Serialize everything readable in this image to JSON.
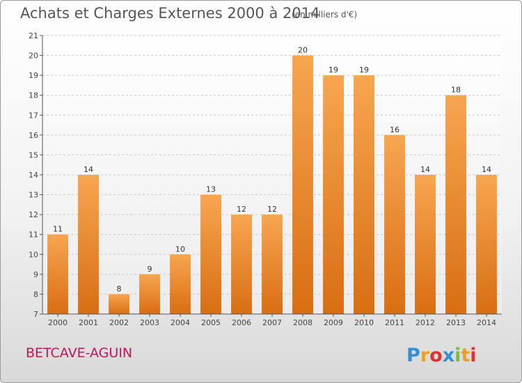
{
  "title": "Achats et Charges Externes 2000 à 2014",
  "subtitle": "(en milliers d'€)",
  "place": "BETCAVE-AGUIN",
  "logo": {
    "text": "Proxiti",
    "letters": [
      {
        "ch": "P",
        "color": "#2f8fd8"
      },
      {
        "ch": "r",
        "color": "#f0a020"
      },
      {
        "ch": "o",
        "color": "#e3302c"
      },
      {
        "ch": "x",
        "color": "#2f8fd8"
      },
      {
        "ch": "i",
        "color": "#7cbf2a"
      },
      {
        "ch": "t",
        "color": "#f0a020"
      },
      {
        "ch": "i",
        "color": "#e3302c"
      }
    ]
  },
  "colors": {
    "bar_top": "#f7a650",
    "bar_bottom": "#d86e12",
    "place": "#c0165c"
  },
  "chart_data": {
    "type": "bar",
    "title": "Achats et Charges Externes 2000 à 2014",
    "subtitle": "(en milliers d'€)",
    "xlabel": "",
    "ylabel": "",
    "categories": [
      "2000",
      "2001",
      "2002",
      "2003",
      "2004",
      "2005",
      "2006",
      "2007",
      "2008",
      "2009",
      "2010",
      "2011",
      "2012",
      "2013",
      "2014"
    ],
    "values": [
      11,
      14,
      8,
      9,
      10,
      13,
      12,
      12,
      20,
      19,
      19,
      16,
      14,
      18,
      14
    ],
    "data_labels": [
      "11",
      "14",
      "8",
      "9",
      "10",
      "13",
      "12",
      "12",
      "20",
      "19",
      "19",
      "16",
      "14",
      "18",
      "14"
    ],
    "ylim": [
      7,
      21
    ],
    "yticks": [
      7,
      8,
      9,
      10,
      11,
      12,
      13,
      14,
      15,
      16,
      17,
      18,
      19,
      20,
      21
    ],
    "grid": "horizontal dashed",
    "legend": "none"
  }
}
